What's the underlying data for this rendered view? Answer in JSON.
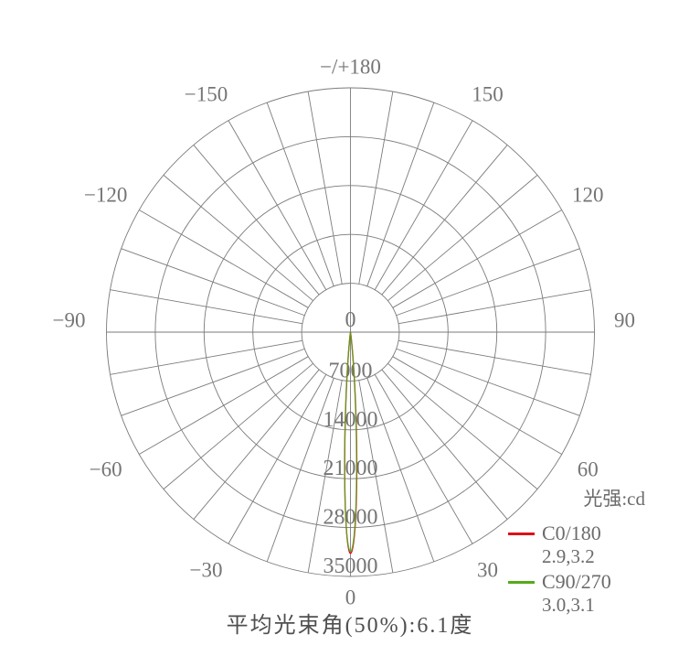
{
  "page": {
    "background": "#ffffff"
  },
  "chart_data": {
    "type": "line",
    "subtype": "polar-photometric-intensity-distribution",
    "title": "平均光束角(50%):6.1度",
    "units_label": "光强:cd",
    "grid": {
      "on": true,
      "spoke_step_deg": 10,
      "color": "#7b7b7b"
    },
    "radial_axis": {
      "min": 0,
      "max": 35000,
      "step": 7000,
      "tick_labels": [
        "0",
        "7000",
        "14000",
        "21000",
        "28000",
        "35000"
      ]
    },
    "angle_labels": [
      {
        "angle": 180,
        "text": "−/+180"
      },
      {
        "angle": -150,
        "text": "−150"
      },
      {
        "angle": 150,
        "text": "150"
      },
      {
        "angle": -120,
        "text": "−120"
      },
      {
        "angle": 120,
        "text": "120"
      },
      {
        "angle": -90,
        "text": "−90"
      },
      {
        "angle": 90,
        "text": "90"
      },
      {
        "angle": -60,
        "text": "−60"
      },
      {
        "angle": 60,
        "text": "60"
      },
      {
        "angle": -30,
        "text": "−30"
      },
      {
        "angle": 30,
        "text": "30"
      },
      {
        "angle": 0,
        "text": "0"
      }
    ],
    "series": [
      {
        "name": "C0/180",
        "beam_angle_label": "2.9,3.2",
        "color": "#dd1018",
        "peak_cd": 31700,
        "half_angle_left_deg": 2.9,
        "half_angle_right_deg": 3.2
      },
      {
        "name": "C90/270",
        "beam_angle_label": "3.0,3.1",
        "color": "#55ab1a",
        "peak_cd": 31400,
        "half_angle_left_deg": 3.0,
        "half_angle_right_deg": 3.1
      }
    ],
    "legend_position": "right-bottom",
    "beam_direction_deg": 0,
    "average_beam_angle_50pct_deg": 6.1
  }
}
